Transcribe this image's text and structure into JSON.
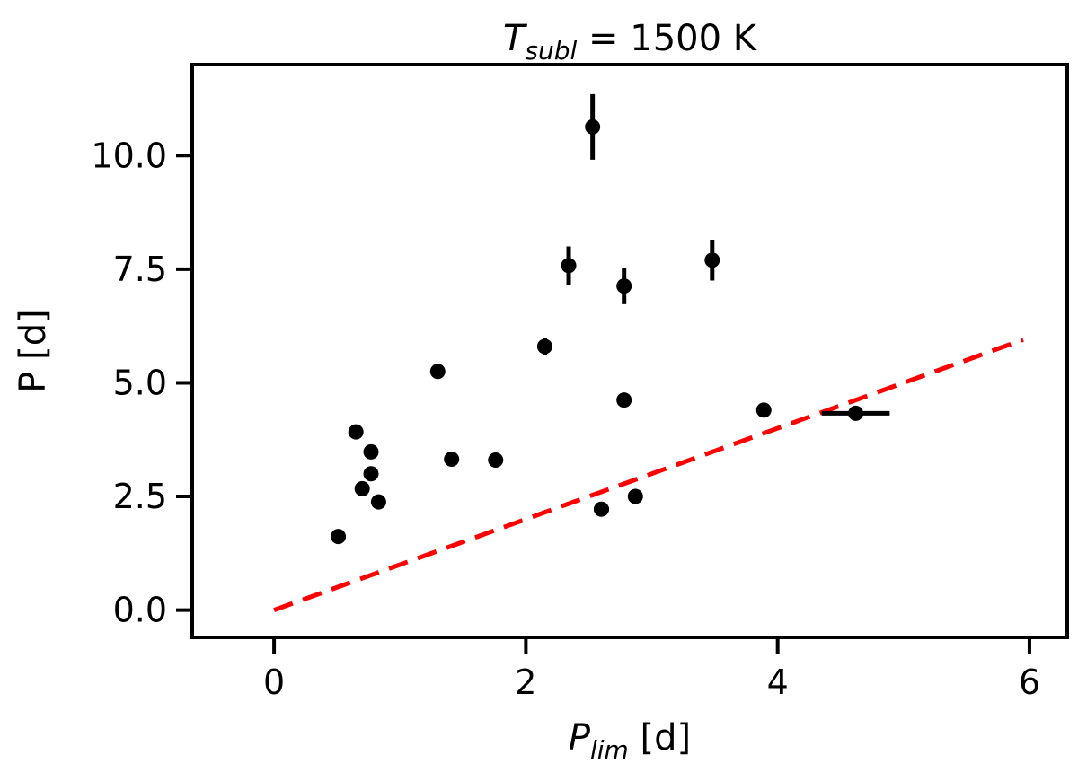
{
  "chart_data": {
    "type": "scatter",
    "title": {
      "main": "T",
      "sub": "subl",
      "rest": " = 1500 K"
    },
    "xlabel": {
      "main": "P",
      "sub": "lim",
      "rest": " [d]"
    },
    "ylabel": "P [d]",
    "xlim": [
      -0.65,
      6.3
    ],
    "ylim": [
      -0.6,
      12.0
    ],
    "xticks": [
      0,
      2,
      4,
      6
    ],
    "yticks": [
      0.0,
      2.5,
      5.0,
      7.5,
      10.0
    ],
    "grid": false,
    "legend": "none",
    "colors": {
      "points": "#000000",
      "reference_line": "#ff0000"
    },
    "reference_line": {
      "x": [
        0,
        5.95
      ],
      "y": [
        0,
        5.95
      ],
      "style": "dashed"
    },
    "points": [
      {
        "x": 0.51,
        "y": 1.62,
        "yerr": 0.0,
        "xerr": 0.0
      },
      {
        "x": 0.65,
        "y": 3.92,
        "yerr": 0.0,
        "xerr": 0.0
      },
      {
        "x": 0.7,
        "y": 2.67,
        "yerr": 0.0,
        "xerr": 0.0
      },
      {
        "x": 0.77,
        "y": 3.48,
        "yerr": 0.0,
        "xerr": 0.0
      },
      {
        "x": 0.77,
        "y": 3.0,
        "yerr": 0.0,
        "xerr": 0.0
      },
      {
        "x": 0.83,
        "y": 2.38,
        "yerr": 0.0,
        "xerr": 0.0
      },
      {
        "x": 1.3,
        "y": 5.25,
        "yerr": 0.15,
        "xerr": 0.0
      },
      {
        "x": 1.41,
        "y": 3.32,
        "yerr": 0.0,
        "xerr": 0.0
      },
      {
        "x": 1.76,
        "y": 3.3,
        "yerr": 0.0,
        "xerr": 0.0
      },
      {
        "x": 2.15,
        "y": 5.8,
        "yerr": 0.18,
        "xerr": 0.0
      },
      {
        "x": 2.34,
        "y": 7.58,
        "yerr": 0.42,
        "xerr": 0.0
      },
      {
        "x": 2.53,
        "y": 10.63,
        "yerr": 0.72,
        "xerr": 0.0
      },
      {
        "x": 2.6,
        "y": 2.22,
        "yerr": 0.0,
        "xerr": 0.06
      },
      {
        "x": 2.78,
        "y": 4.62,
        "yerr": 0.0,
        "xerr": 0.0
      },
      {
        "x": 2.78,
        "y": 7.13,
        "yerr": 0.4,
        "xerr": 0.0
      },
      {
        "x": 2.87,
        "y": 2.5,
        "yerr": 0.0,
        "xerr": 0.0
      },
      {
        "x": 3.48,
        "y": 7.7,
        "yerr": 0.45,
        "xerr": 0.04
      },
      {
        "x": 3.89,
        "y": 4.4,
        "yerr": 0.0,
        "xerr": 0.0
      },
      {
        "x": 4.62,
        "y": 4.33,
        "yerr": 0.0,
        "xerr": 0.27
      }
    ]
  }
}
